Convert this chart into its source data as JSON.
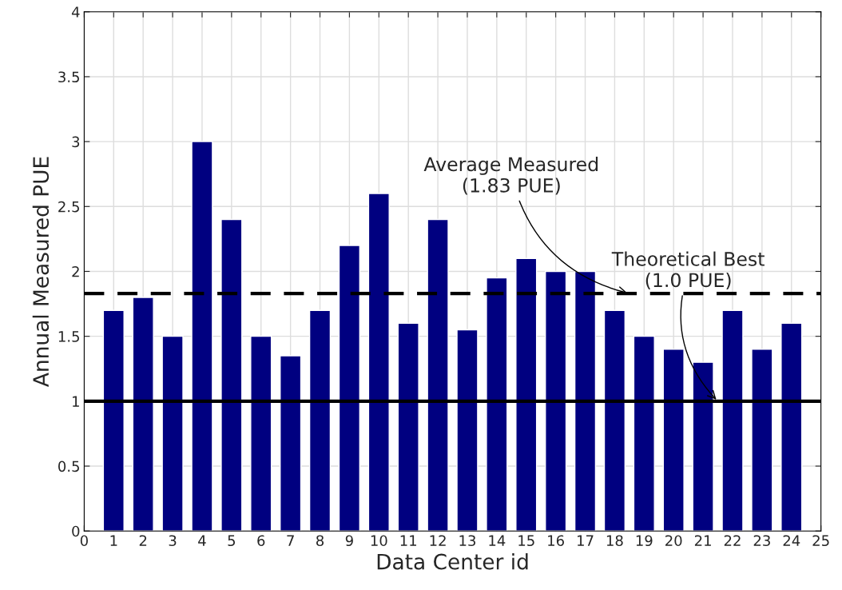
{
  "chart_data": {
    "type": "bar",
    "xlabel": "Data Center id",
    "ylabel": "Annual Measured PUE",
    "x": [
      1,
      2,
      3,
      4,
      5,
      6,
      7,
      8,
      9,
      10,
      11,
      12,
      13,
      14,
      15,
      16,
      17,
      18,
      19,
      20,
      21,
      22,
      23,
      24
    ],
    "series": [
      {
        "color": "#000080",
        "values": [
          1.7,
          1.8,
          1.5,
          3.0,
          2.4,
          1.5,
          1.35,
          1.7,
          2.2,
          2.6,
          1.6,
          2.4,
          1.55,
          1.95,
          2.1,
          2.0,
          2.0,
          1.7,
          1.5,
          1.4,
          1.3,
          1.7,
          1.4,
          1.6
        ]
      }
    ],
    "xlim": [
      0,
      25
    ],
    "xticks": [
      0,
      1,
      2,
      3,
      4,
      5,
      6,
      7,
      8,
      9,
      10,
      11,
      12,
      13,
      14,
      15,
      16,
      17,
      18,
      19,
      20,
      21,
      22,
      23,
      24,
      25
    ],
    "ylim": [
      0,
      4
    ],
    "yticks": [
      0,
      0.5,
      1,
      1.5,
      2,
      2.5,
      3,
      3.5,
      4
    ],
    "ref_lines": [
      {
        "axis": "y",
        "value": 1.83,
        "color": "#000000",
        "line_style": "dashed"
      },
      {
        "axis": "y",
        "value": 1.0,
        "color": "#000000",
        "line_style": "solid"
      }
    ],
    "annotations": [
      {
        "text": "Average Measured\n(1.83 PUE)",
        "x": 18.5,
        "y": 1.83
      },
      {
        "text": "Theoretical Best\n(1.0 PUE)",
        "x": 21.5,
        "y": 1.0
      }
    ],
    "grid": true
  }
}
